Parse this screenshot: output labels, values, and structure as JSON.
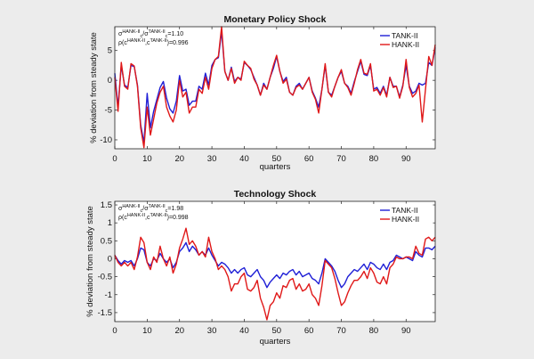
{
  "chart_data": [
    {
      "type": "line",
      "title": "Monetary Policy Shock",
      "xlabel": "quarters",
      "ylabel": "% deviation from steady state",
      "xlim": [
        0,
        99
      ],
      "ylim": [
        -11.5,
        9
      ],
      "xticks": [
        0,
        10,
        20,
        30,
        40,
        50,
        60,
        70,
        80,
        90
      ],
      "yticks": [
        -10,
        -5,
        0,
        5
      ],
      "grid": false,
      "legend_position": "top-right",
      "annotations": [
        {
          "prefix": "σ",
          "sub1": "c",
          "sup1": "HANK-II",
          "sep": "/σ",
          "sub2": "c",
          "sup2": "TANK-II",
          "value": "=1.10"
        },
        {
          "prefix": "ρ(c",
          "sup1": "HANK-II",
          "sep": ",c",
          "sup2": "TANK-II",
          "suffix": ")",
          "value": "=0.996"
        }
      ],
      "x": [
        0,
        1,
        2,
        3,
        4,
        5,
        6,
        7,
        8,
        9,
        10,
        11,
        12,
        13,
        14,
        15,
        16,
        17,
        18,
        19,
        20,
        21,
        22,
        23,
        24,
        25,
        26,
        27,
        28,
        29,
        30,
        31,
        32,
        33,
        34,
        35,
        36,
        37,
        38,
        39,
        40,
        41,
        42,
        43,
        44,
        45,
        46,
        47,
        48,
        49,
        50,
        51,
        52,
        53,
        54,
        55,
        56,
        57,
        58,
        59,
        60,
        61,
        62,
        63,
        64,
        65,
        66,
        67,
        68,
        69,
        70,
        71,
        72,
        73,
        74,
        75,
        76,
        77,
        78,
        79,
        80,
        81,
        82,
        83,
        84,
        85,
        86,
        87,
        88,
        89,
        90,
        91,
        92,
        93,
        94,
        95,
        96,
        97,
        98,
        99
      ],
      "series": [
        {
          "name": "TANK-II",
          "color": "#1f1fd6",
          "values": [
            1.2,
            -4.5,
            2.5,
            -0.8,
            -1.2,
            2.5,
            2.3,
            -0.8,
            -7.5,
            -10.5,
            -2.2,
            -8.0,
            -5.2,
            -3.2,
            -1.2,
            -0.2,
            -3.0,
            -4.8,
            -5.5,
            -3.5,
            0.8,
            -1.8,
            -1.5,
            -4.2,
            -3.5,
            -3.5,
            -1.0,
            -1.5,
            1.2,
            -0.8,
            2.5,
            3.5,
            3.8,
            8.2,
            1.5,
            0.0,
            2.2,
            -0.2,
            0.5,
            0.2,
            3.0,
            2.5,
            1.8,
            0.5,
            -0.8,
            -2.5,
            -0.5,
            -1.5,
            0.5,
            2.0,
            4.0,
            1.5,
            -0.2,
            0.5,
            -2.0,
            -2.5,
            -1.0,
            -0.5,
            -1.5,
            -0.5,
            0.5,
            -1.8,
            -3.0,
            -4.5,
            -1.5,
            2.5,
            -2.0,
            -2.5,
            -1.0,
            0.5,
            1.5,
            -0.5,
            -1.0,
            -2.2,
            -0.2,
            1.5,
            3.2,
            1.0,
            0.8,
            2.5,
            -1.5,
            -1.2,
            -2.2,
            -1.0,
            -2.5,
            0.5,
            -1.0,
            -1.0,
            -2.8,
            -0.8,
            2.5,
            -1.0,
            -2.2,
            -1.8,
            -0.5,
            -0.8,
            -0.5,
            3.0,
            2.5,
            5.5
          ]
        },
        {
          "name": "HANK-II",
          "color": "#e01818",
          "values": [
            0.5,
            -5.2,
            3.0,
            -1.0,
            -1.5,
            2.8,
            2.4,
            -1.0,
            -8.0,
            -11.3,
            -4.5,
            -9.2,
            -6.5,
            -3.8,
            -2.0,
            -1.0,
            -4.5,
            -6.0,
            -7.0,
            -5.0,
            0.0,
            -2.8,
            -2.0,
            -5.5,
            -4.5,
            -4.5,
            -1.5,
            -2.2,
            0.5,
            -1.5,
            2.0,
            3.5,
            4.0,
            9.0,
            1.5,
            0.0,
            2.0,
            -0.5,
            0.5,
            0.0,
            3.2,
            2.5,
            2.0,
            0.2,
            -0.8,
            -2.5,
            -0.8,
            -1.5,
            0.5,
            2.5,
            4.2,
            1.5,
            -0.5,
            0.2,
            -2.0,
            -2.5,
            -1.2,
            -0.8,
            -1.5,
            -0.5,
            0.5,
            -2.0,
            -3.2,
            -5.5,
            -1.5,
            2.8,
            -2.0,
            -2.8,
            -1.0,
            0.5,
            1.8,
            -0.5,
            -1.2,
            -2.5,
            -0.5,
            1.8,
            3.5,
            1.2,
            1.0,
            2.8,
            -1.8,
            -1.5,
            -2.5,
            -1.2,
            -2.8,
            0.5,
            -1.2,
            -1.0,
            -3.0,
            -1.0,
            3.5,
            -1.2,
            -2.8,
            -2.2,
            -0.8,
            -7.0,
            -1.5,
            4.0,
            2.5,
            6.0
          ]
        }
      ]
    },
    {
      "type": "line",
      "title": "Technology Shock",
      "xlabel": "quarters",
      "ylabel": "% deviation from steady state",
      "xlim": [
        0,
        99
      ],
      "ylim": [
        -1.75,
        1.6
      ],
      "xticks": [
        0,
        10,
        20,
        30,
        40,
        50,
        60,
        70,
        80,
        90
      ],
      "yticks": [
        -1.5,
        -1,
        -0.5,
        0,
        0.5,
        1,
        1.5
      ],
      "ytick_labels": [
        "-1.5",
        "-1",
        "-0.5",
        "0",
        "0.5",
        "1",
        "1.5"
      ],
      "grid": false,
      "legend_position": "top-right",
      "annotations": [
        {
          "prefix": "σ",
          "sub1": "c",
          "sup1": "HANK-II",
          "sep": "/σ",
          "sub2": "c",
          "sup2": "TANK-II",
          "value": "=1.98"
        },
        {
          "prefix": "ρ(c",
          "sup1": "HANK-II",
          "sep": ",c",
          "sup2": "TANK-II",
          "suffix": ")",
          "value": "=0.998"
        }
      ],
      "x": [
        0,
        1,
        2,
        3,
        4,
        5,
        6,
        7,
        8,
        9,
        10,
        11,
        12,
        13,
        14,
        15,
        16,
        17,
        18,
        19,
        20,
        21,
        22,
        23,
        24,
        25,
        26,
        27,
        28,
        29,
        30,
        31,
        32,
        33,
        34,
        35,
        36,
        37,
        38,
        39,
        40,
        41,
        42,
        43,
        44,
        45,
        46,
        47,
        48,
        49,
        50,
        51,
        52,
        53,
        54,
        55,
        56,
        57,
        58,
        59,
        60,
        61,
        62,
        63,
        64,
        65,
        66,
        67,
        68,
        69,
        70,
        71,
        72,
        73,
        74,
        75,
        76,
        77,
        78,
        79,
        80,
        81,
        82,
        83,
        84,
        85,
        86,
        87,
        88,
        89,
        90,
        91,
        92,
        93,
        94,
        95,
        96,
        97,
        98,
        99
      ],
      "series": [
        {
          "name": "TANK-II",
          "color": "#1f1fd6",
          "values": [
            0.1,
            -0.05,
            -0.15,
            -0.05,
            -0.1,
            -0.05,
            -0.2,
            0.0,
            0.3,
            0.25,
            -0.1,
            -0.2,
            0.0,
            -0.05,
            0.15,
            0.0,
            -0.1,
            0.0,
            -0.25,
            -0.1,
            0.2,
            0.3,
            0.45,
            0.2,
            0.35,
            0.25,
            0.1,
            0.2,
            0.1,
            0.3,
            0.1,
            -0.05,
            -0.2,
            -0.1,
            -0.15,
            -0.25,
            -0.4,
            -0.3,
            -0.4,
            -0.3,
            -0.25,
            -0.45,
            -0.5,
            -0.4,
            -0.3,
            -0.5,
            -0.6,
            -0.8,
            -0.65,
            -0.55,
            -0.45,
            -0.55,
            -0.4,
            -0.45,
            -0.35,
            -0.3,
            -0.45,
            -0.35,
            -0.5,
            -0.45,
            -0.4,
            -0.55,
            -0.6,
            -0.7,
            -0.4,
            0.0,
            -0.1,
            -0.2,
            -0.35,
            -0.6,
            -0.8,
            -0.7,
            -0.5,
            -0.4,
            -0.3,
            -0.35,
            -0.25,
            -0.15,
            -0.3,
            -0.1,
            -0.15,
            -0.25,
            -0.3,
            -0.15,
            -0.3,
            -0.1,
            -0.05,
            0.1,
            0.05,
            0.0,
            0.05,
            0.0,
            -0.05,
            0.2,
            0.1,
            0.05,
            0.3,
            0.3,
            0.25,
            0.35
          ]
        },
        {
          "name": "HANK-II",
          "color": "#e01818",
          "values": [
            0.1,
            -0.1,
            -0.2,
            -0.1,
            -0.2,
            -0.1,
            -0.3,
            0.05,
            0.6,
            0.45,
            -0.1,
            -0.3,
            0.05,
            -0.1,
            0.35,
            0.0,
            -0.2,
            0.05,
            -0.4,
            -0.15,
            0.3,
            0.55,
            0.85,
            0.4,
            0.5,
            0.35,
            0.1,
            0.2,
            0.05,
            0.6,
            0.2,
            0.0,
            -0.3,
            -0.2,
            -0.3,
            -0.5,
            -0.9,
            -0.7,
            -0.7,
            -0.5,
            -0.4,
            -0.85,
            -0.9,
            -0.8,
            -0.6,
            -1.1,
            -1.35,
            -1.7,
            -1.3,
            -1.2,
            -0.95,
            -1.1,
            -0.75,
            -0.8,
            -0.6,
            -0.55,
            -0.85,
            -0.7,
            -0.9,
            -0.85,
            -0.7,
            -1.0,
            -1.1,
            -1.3,
            -0.75,
            -0.05,
            -0.15,
            -0.25,
            -0.55,
            -0.95,
            -1.3,
            -1.2,
            -0.95,
            -0.75,
            -0.6,
            -0.6,
            -0.5,
            -0.35,
            -0.55,
            -0.25,
            -0.4,
            -0.65,
            -0.7,
            -0.5,
            -0.7,
            -0.25,
            -0.15,
            0.05,
            0.0,
            0.0,
            0.05,
            0.05,
            0.0,
            0.35,
            0.15,
            0.1,
            0.55,
            0.6,
            0.5,
            0.6
          ]
        }
      ]
    }
  ]
}
